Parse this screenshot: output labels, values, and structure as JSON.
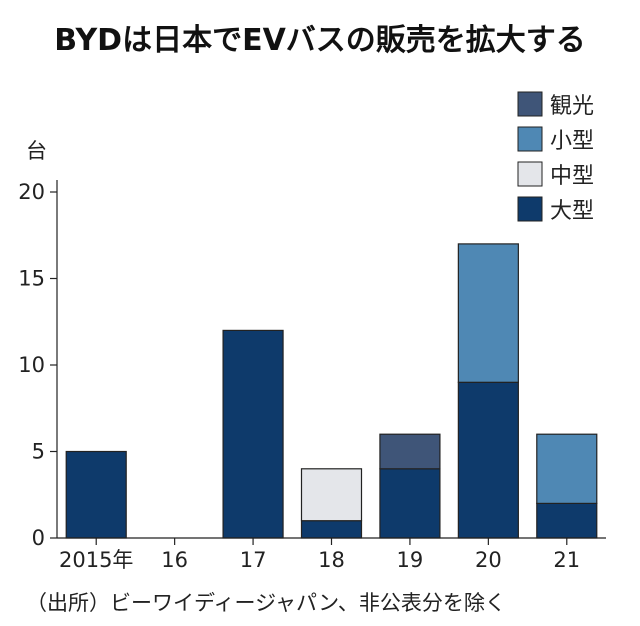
{
  "chart_data": {
    "type": "bar",
    "stacked": true,
    "title": "BYDは日本でEVバスの販売を拡大する",
    "ylabel": "台",
    "categories": [
      "2015年",
      "16",
      "17",
      "18",
      "19",
      "20",
      "21"
    ],
    "ylim": [
      0,
      20
    ],
    "yticks": [
      0,
      5,
      10,
      15,
      20
    ],
    "series": [
      {
        "name": "大型",
        "color": "#0e3a6b",
        "values": [
          5,
          0,
          12,
          1,
          4,
          9,
          2
        ]
      },
      {
        "name": "中型",
        "color": "#e4e6ea",
        "values": [
          0,
          0,
          0,
          3,
          0,
          0,
          0
        ]
      },
      {
        "name": "小型",
        "color": "#4f88b4",
        "values": [
          0,
          0,
          0,
          0,
          0,
          8,
          4
        ]
      },
      {
        "name": "観光",
        "color": "#3f5578",
        "values": [
          0,
          0,
          0,
          0,
          2,
          0,
          0
        ]
      }
    ],
    "legend_order": [
      "観光",
      "小型",
      "中型",
      "大型"
    ],
    "legend_position": "top-right",
    "grid": false,
    "source": "（出所）ビーワイディージャパン、非公表分を除く"
  }
}
